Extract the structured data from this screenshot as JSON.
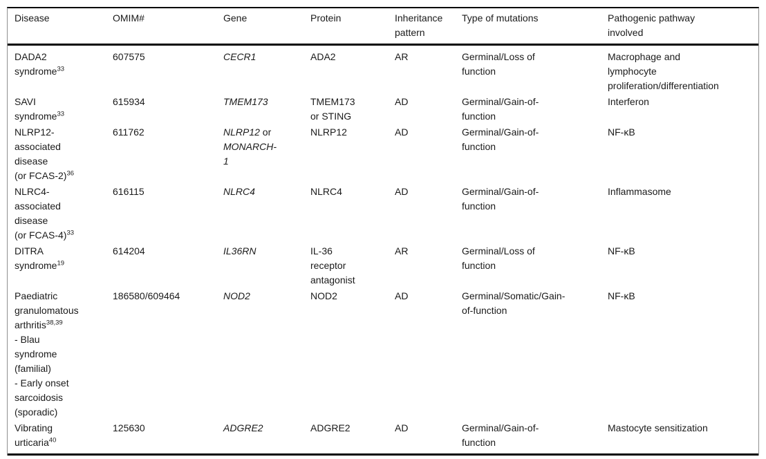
{
  "page": {
    "background": "#ffffff",
    "text_color": "#1a1a1a",
    "rule_color": "#000000"
  },
  "table": {
    "columns": [
      {
        "key": "disease",
        "label": [
          "Disease"
        ]
      },
      {
        "key": "omim",
        "label": [
          "OMIM#"
        ]
      },
      {
        "key": "gene",
        "label": [
          "Gene"
        ]
      },
      {
        "key": "protein",
        "label": [
          "Protein"
        ]
      },
      {
        "key": "inheritance",
        "label": [
          "Inheritance",
          "pattern"
        ]
      },
      {
        "key": "mutations",
        "label": [
          "Type of mutations"
        ]
      },
      {
        "key": "pathway",
        "label": [
          "Pathogenic pathway",
          "involved"
        ]
      }
    ],
    "rows": [
      {
        "disease": [
          [
            "DADA2"
          ],
          [
            "syndrome",
            {
              "t": "33",
              "sup": true
            }
          ]
        ],
        "omim": [
          [
            "607575"
          ]
        ],
        "gene": [
          [
            {
              "t": "CECR1",
              "i": true
            }
          ]
        ],
        "protein": [
          [
            "ADA2"
          ]
        ],
        "inheritance": [
          [
            "AR"
          ]
        ],
        "mutations": [
          [
            "Germinal/Loss of"
          ],
          [
            "function"
          ]
        ],
        "pathway": [
          [
            "Macrophage and"
          ],
          [
            "lymphocyte"
          ],
          [
            "proliferation/differentiation"
          ]
        ]
      },
      {
        "disease": [
          [
            "SAVI"
          ],
          [
            "syndrome",
            {
              "t": "33",
              "sup": true
            }
          ]
        ],
        "omim": [
          [
            "615934"
          ]
        ],
        "gene": [
          [
            {
              "t": "TMEM173",
              "i": true
            }
          ]
        ],
        "protein": [
          [
            "TMEM173"
          ],
          [
            "or STING"
          ]
        ],
        "inheritance": [
          [
            "AD"
          ]
        ],
        "mutations": [
          [
            "Germinal/Gain-of-"
          ],
          [
            "function"
          ]
        ],
        "pathway": [
          [
            "Interferon"
          ]
        ]
      },
      {
        "disease": [
          [
            "NLRP12-"
          ],
          [
            "associated"
          ],
          [
            "disease"
          ],
          [
            "(or FCAS-2)",
            {
              "t": "36",
              "sup": true
            }
          ]
        ],
        "omim": [
          [
            "611762"
          ]
        ],
        "gene": [
          [
            {
              "t": "NLRP12",
              "i": true
            },
            " or"
          ],
          [
            {
              "t": "MONARCH-",
              "i": true
            }
          ],
          [
            {
              "t": "1",
              "i": true
            }
          ]
        ],
        "protein": [
          [
            "NLRP12"
          ]
        ],
        "inheritance": [
          [
            "AD"
          ]
        ],
        "mutations": [
          [
            "Germinal/Gain-of-"
          ],
          [
            "function"
          ]
        ],
        "pathway": [
          [
            "NF-κB"
          ]
        ]
      },
      {
        "disease": [
          [
            "NLRC4-"
          ],
          [
            "associated"
          ],
          [
            "disease"
          ],
          [
            "(or FCAS-4)",
            {
              "t": "33",
              "sup": true
            }
          ]
        ],
        "omim": [
          [
            "616115"
          ]
        ],
        "gene": [
          [
            {
              "t": "NLRC4",
              "i": true
            }
          ]
        ],
        "protein": [
          [
            "NLRC4"
          ]
        ],
        "inheritance": [
          [
            "AD"
          ]
        ],
        "mutations": [
          [
            "Germinal/Gain-of-"
          ],
          [
            "function"
          ]
        ],
        "pathway": [
          [
            "Inflammasome"
          ]
        ]
      },
      {
        "disease": [
          [
            "DITRA"
          ],
          [
            "syndrome",
            {
              "t": "19",
              "sup": true
            }
          ]
        ],
        "omim": [
          [
            "614204"
          ]
        ],
        "gene": [
          [
            {
              "t": "IL36RN",
              "i": true
            }
          ]
        ],
        "protein": [
          [
            "IL-36"
          ],
          [
            "receptor"
          ],
          [
            "antagonist"
          ]
        ],
        "inheritance": [
          [
            "AR"
          ]
        ],
        "mutations": [
          [
            "Germinal/Loss of"
          ],
          [
            "function"
          ]
        ],
        "pathway": [
          [
            "NF-κB"
          ]
        ]
      },
      {
        "disease": [
          [
            "Paediatric"
          ],
          [
            "granulomatous"
          ],
          [
            "arthritis",
            {
              "t": "38,39",
              "sup": true
            }
          ],
          [
            "- Blau"
          ],
          [
            "syndrome"
          ],
          [
            "(familial)"
          ],
          [
            "- Early onset"
          ],
          [
            "sarcoidosis"
          ],
          [
            "(sporadic)"
          ]
        ],
        "omim": [
          [
            "186580/609464"
          ]
        ],
        "gene": [
          [
            {
              "t": "NOD2",
              "i": true
            }
          ]
        ],
        "protein": [
          [
            "NOD2"
          ]
        ],
        "inheritance": [
          [
            "AD"
          ]
        ],
        "mutations": [
          [
            "Germinal/Somatic/Gain-"
          ],
          [
            "of-function"
          ]
        ],
        "pathway": [
          [
            "NF-κB"
          ]
        ]
      },
      {
        "disease": [
          [
            "Vibrating"
          ],
          [
            "urticaria",
            {
              "t": "40",
              "sup": true
            }
          ]
        ],
        "omim": [
          [
            "125630"
          ]
        ],
        "gene": [
          [
            {
              "t": "ADGRE2",
              "i": true
            }
          ]
        ],
        "protein": [
          [
            "ADGRE2"
          ]
        ],
        "inheritance": [
          [
            "AD"
          ]
        ],
        "mutations": [
          [
            "Germinal/Gain-of-"
          ],
          [
            "function"
          ]
        ],
        "pathway": [
          [
            "Mastocyte sensitization"
          ]
        ]
      }
    ]
  }
}
